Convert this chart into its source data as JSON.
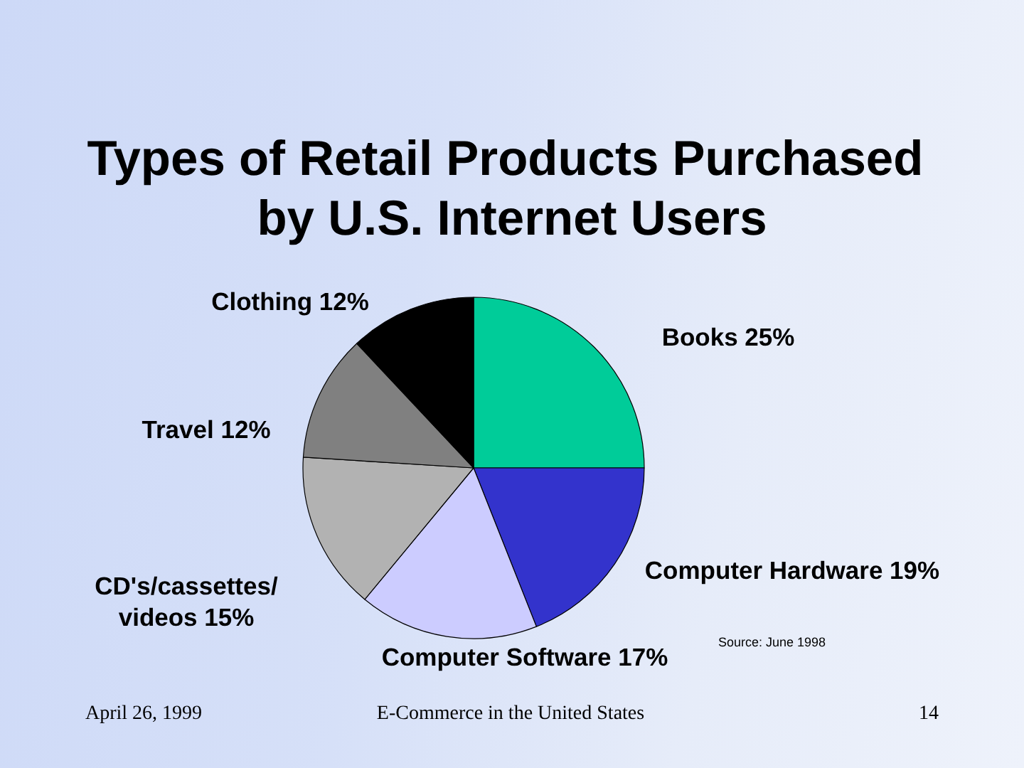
{
  "chart_data": {
    "type": "pie",
    "title": "Types of Retail Products Purchased by U.S. Internet Users",
    "categories": [
      "Books",
      "Computer Hardware",
      "Computer Software",
      "CD's/cassettes/videos",
      "Travel",
      "Clothing"
    ],
    "values": [
      25,
      19,
      17,
      15,
      12,
      12
    ],
    "value_labels": [
      "25%",
      "19%",
      "17%",
      "15%",
      "12%",
      "12%"
    ],
    "colors": [
      "#00cc99",
      "#3333cc",
      "#ccccff",
      "#b2b2b2",
      "#808080",
      "#000000"
    ],
    "annotations": [
      "Source: June 1998",
      "April 26, 1999",
      "E-Commerce in the United States",
      "14"
    ]
  }
}
